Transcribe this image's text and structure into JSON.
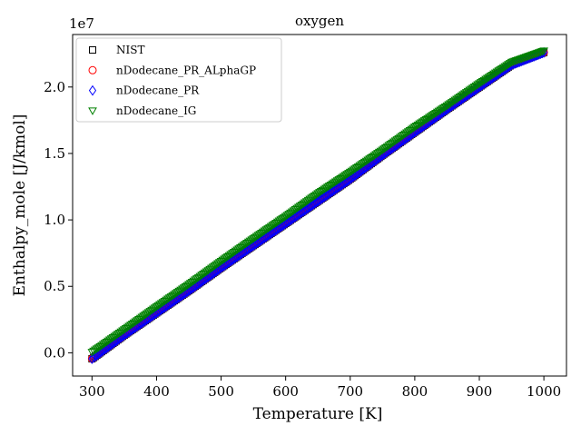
{
  "chart_data": {
    "type": "scatter",
    "title": "oxygen",
    "xlabel": "Temperature [K]",
    "ylabel": "Enthalpy_mole [J/kmol]",
    "y_offset_label": "1e7",
    "xlim": [
      270,
      1035
    ],
    "ylim": [
      -1.75,
      23.95
    ],
    "y_scale_note": "values in units of 1e7 J/kmol (tick 2.0 = 2.0e7)",
    "x_ticks": [
      300,
      400,
      500,
      600,
      700,
      800,
      900,
      1000
    ],
    "x_tick_labels": [
      "300",
      "400",
      "500",
      "600",
      "700",
      "800",
      "900",
      "1000"
    ],
    "y_ticks": [
      0.0,
      0.5,
      1.0,
      1.5,
      2.0
    ],
    "y_tick_labels": [
      "0.0",
      "0.5",
      "1.0",
      "1.5",
      "2.0"
    ],
    "grid": false,
    "legend_position": "top-left",
    "series": [
      {
        "name": "NIST",
        "marker": "square",
        "color": "#000000",
        "x": [
          300,
          350,
          400,
          450,
          500,
          550,
          600,
          650,
          700,
          750,
          800,
          850,
          900,
          950,
          1000
        ],
        "y": [
          -0.45,
          1.33,
          3.0,
          4.67,
          6.4,
          8.07,
          9.73,
          11.4,
          13.07,
          14.87,
          16.6,
          18.33,
          20.0,
          21.67,
          22.6
        ]
      },
      {
        "name": "nDodecane_PR_ALphaGP",
        "marker": "circle",
        "color": "#ff0000",
        "x": [
          300,
          350,
          400,
          450,
          500,
          550,
          600,
          650,
          700,
          750,
          800,
          850,
          900,
          950,
          1000
        ],
        "y": [
          -0.45,
          1.33,
          3.0,
          4.67,
          6.4,
          8.07,
          9.73,
          11.4,
          13.07,
          14.87,
          16.6,
          18.33,
          20.0,
          21.67,
          22.6
        ]
      },
      {
        "name": "nDodecane_PR",
        "marker": "diamond",
        "color": "#0000ff",
        "x": [
          300,
          350,
          400,
          450,
          500,
          550,
          600,
          650,
          700,
          750,
          800,
          850,
          900,
          950,
          1000
        ],
        "y": [
          -0.45,
          1.33,
          3.0,
          4.67,
          6.4,
          8.07,
          9.73,
          11.4,
          13.07,
          14.87,
          16.6,
          18.33,
          20.0,
          21.67,
          22.6
        ]
      },
      {
        "name": "nDodecane_IG",
        "marker": "triangle-down",
        "color": "#008000",
        "x": [
          300,
          350,
          400,
          450,
          500,
          550,
          600,
          650,
          700,
          750,
          800,
          850,
          900,
          950,
          1000
        ],
        "y": [
          0.05,
          1.75,
          3.47,
          5.15,
          6.9,
          8.6,
          10.27,
          12.0,
          13.6,
          15.27,
          17.0,
          18.6,
          20.27,
          21.87,
          22.73
        ]
      }
    ]
  }
}
